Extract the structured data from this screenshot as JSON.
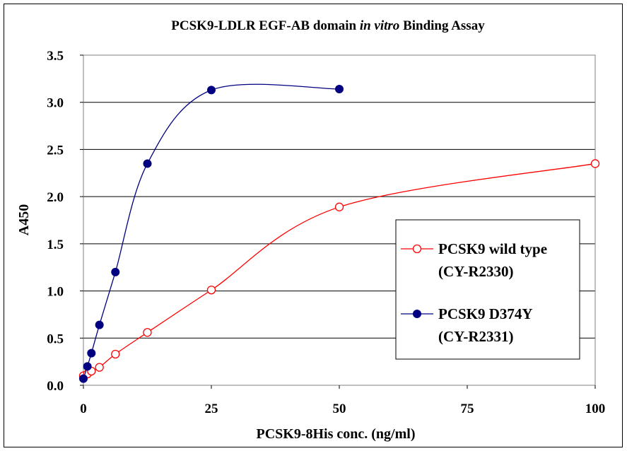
{
  "chart_data": {
    "type": "scatter",
    "title": {
      "part1": "PCSK9-LDLR EGF-AB domain ",
      "part2": "in vitro",
      "part3": " Binding Assay"
    },
    "xlabel": "PCSK9-8His conc. (ng/ml)",
    "ylabel": "A450",
    "xlim": [
      0,
      100
    ],
    "ylim": [
      0,
      3.5
    ],
    "xticks": [
      "0",
      "25",
      "50",
      "75",
      "100"
    ],
    "yticks": [
      "0.0",
      "0.5",
      "1.0",
      "1.5",
      "2.0",
      "2.5",
      "3.0",
      "3.5"
    ],
    "grid": "horizontal",
    "legend_position": "right",
    "series": [
      {
        "name": "PCSK9 wild type",
        "name_line2": "(CY-R2330)",
        "color": "#ff0000",
        "marker": "open-circle",
        "x": [
          0,
          0.78,
          1.56,
          3.13,
          6.25,
          12.5,
          25,
          50,
          100
        ],
        "y": [
          0.1,
          0.12,
          0.15,
          0.19,
          0.33,
          0.56,
          1.01,
          1.89,
          2.35
        ]
      },
      {
        "name": "PCSK9 D374Y",
        "name_line2": "(CY-R2331)",
        "color": "#000080",
        "marker": "filled-circle",
        "x": [
          0,
          0.78,
          1.56,
          3.13,
          6.25,
          12.5,
          25,
          50
        ],
        "y": [
          0.07,
          0.2,
          0.34,
          0.64,
          1.2,
          2.35,
          3.13,
          3.14
        ]
      }
    ]
  }
}
